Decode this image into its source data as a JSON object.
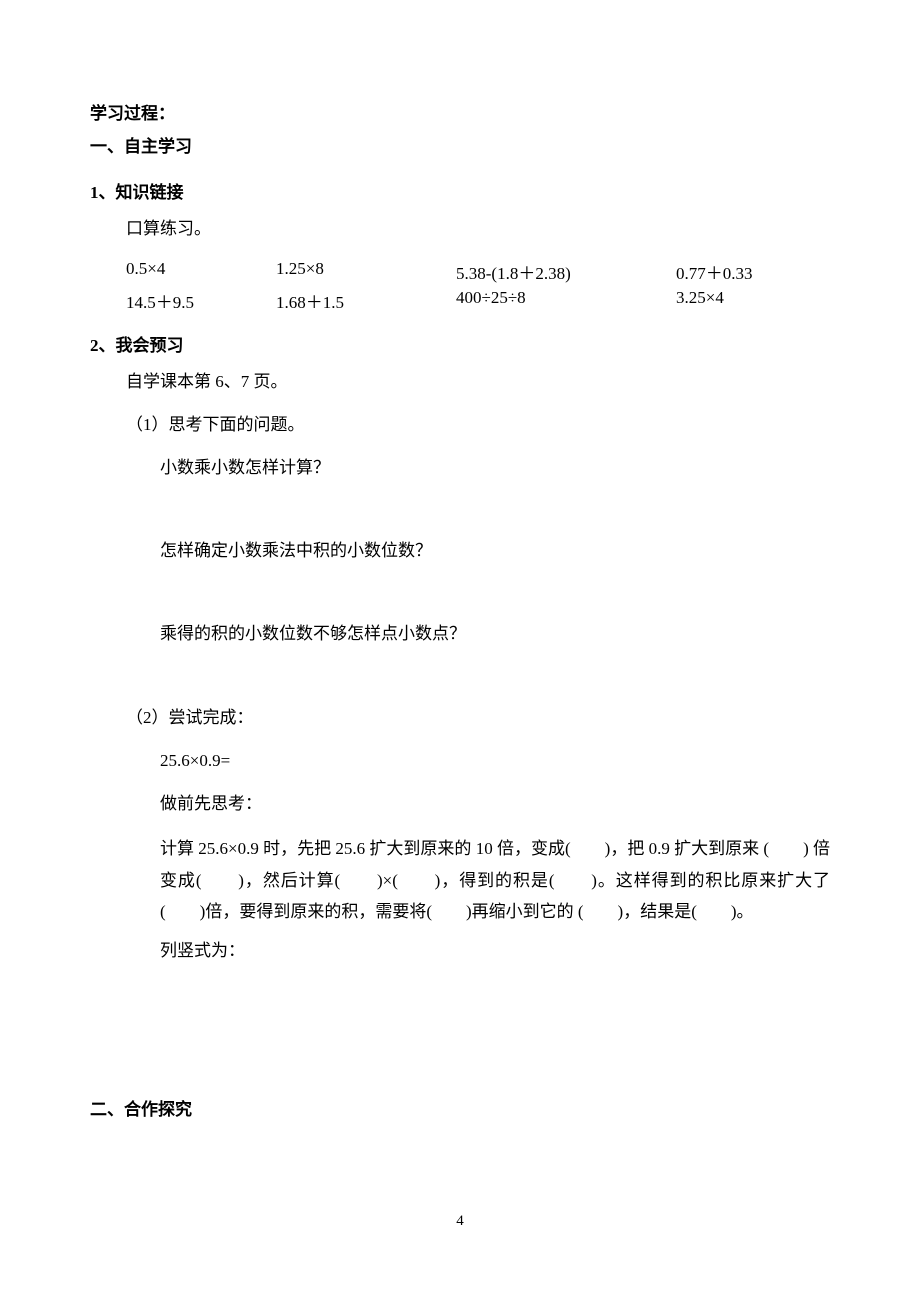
{
  "header": {
    "process": "学习过程：",
    "autoLearn": "一、自主学习"
  },
  "part1": {
    "title": "1、知识链接",
    "oral": "口算练习。",
    "rows": [
      {
        "c1": "0.5×4",
        "c2": "1.25×8",
        "c3": "5.38-(1.8＋2.38)",
        "c4": "0.77＋0.33"
      },
      {
        "c1": "14.5＋9.5",
        "c2": "1.68＋1.5",
        "c3": "400÷25÷8",
        "c4": "3.25×4"
      }
    ]
  },
  "part2": {
    "title": "2、我会预习",
    "self": "自学课本第 6、7 页。",
    "q1head": "（1）思考下面的问题。",
    "q1a": "小数乘小数怎样计算？",
    "q1b": "怎样确定小数乘法中积的小数位数？",
    "q1c": "乘得的积的小数位数不够怎样点小数点？",
    "q2head": "（2）尝试完成：",
    "calc": "25.6×0.9=",
    "think": "做前先思考：",
    "fill": "计算 25.6×0.9 时，先把 25.6 扩大到原来的 10 倍，变成(　　)，把 0.9 扩大到原来 (　　) 倍变成(　　)，然后计算(　　)×(　　)，得到的积是(　　)。这样得到的积比原来扩大了(　　)倍，要得到原来的积，需要将(　　)再缩小到它的 (　　)，结果是(　　)。",
    "vertical": "列竖式为："
  },
  "section2": "二、合作探究",
  "pageNumber": "4"
}
